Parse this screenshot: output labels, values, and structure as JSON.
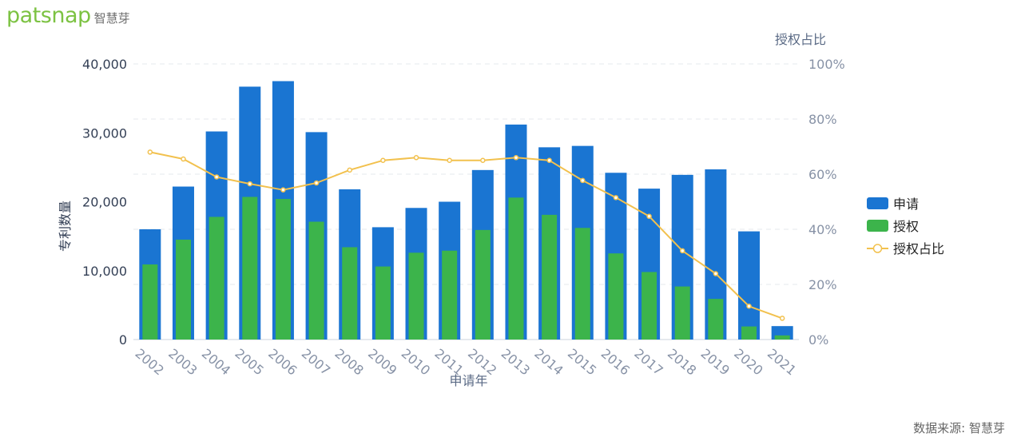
{
  "brand": {
    "logo_text": "patsnap",
    "logo_cn": "智慧芽"
  },
  "footer": {
    "source": "数据来源: 智慧芽"
  },
  "colors": {
    "apply": "#1a75d2",
    "grant": "#3cb44b",
    "ratio": "#f2c14e",
    "axis_text": "#333f55",
    "axis_title": "#5a6a85",
    "grid": "#e6e9ee"
  },
  "chart_data": {
    "type": "bar",
    "categories": [
      "2002",
      "2003",
      "2004",
      "2005",
      "2006",
      "2007",
      "2008",
      "2009",
      "2010",
      "2011",
      "2012",
      "2013",
      "2014",
      "2015",
      "2016",
      "2017",
      "2018",
      "2019",
      "2020",
      "2021"
    ],
    "series": [
      {
        "name": "申请",
        "type": "bar",
        "axis": "left",
        "values": [
          16000,
          22200,
          30200,
          36700,
          37500,
          30100,
          21800,
          16300,
          19100,
          20000,
          24600,
          31200,
          27900,
          28100,
          24200,
          21900,
          23900,
          24700,
          15700,
          1950
        ]
      },
      {
        "name": "授权",
        "type": "bar",
        "axis": "left",
        "values": [
          10900,
          14500,
          17800,
          20700,
          20400,
          17100,
          13400,
          10600,
          12600,
          12900,
          15900,
          20600,
          18100,
          16200,
          12500,
          9800,
          7700,
          5900,
          1900,
          600
        ]
      },
      {
        "name": "授权占比",
        "type": "line",
        "axis": "right",
        "unit": "%",
        "values": [
          68,
          65.5,
          59,
          56.5,
          54.3,
          56.8,
          61.5,
          65,
          66,
          65,
          65,
          66,
          65,
          57.7,
          51.5,
          44.7,
          32.2,
          23.9,
          12.1,
          7.7
        ]
      }
    ],
    "xlabel": "申请年",
    "ylabel": "专利数量",
    "y2label": "授权占比",
    "ylim": [
      0,
      40000
    ],
    "y2lim": [
      0,
      100
    ],
    "yticks": [
      "0",
      "10,000",
      "20,000",
      "30,000",
      "40,000"
    ],
    "y2ticks": [
      "0%",
      "20%",
      "40%",
      "60%",
      "80%",
      "100%"
    ],
    "grid": true,
    "legend": {
      "placement": "right",
      "entries": [
        "申请",
        "授权",
        "授权占比"
      ]
    }
  }
}
